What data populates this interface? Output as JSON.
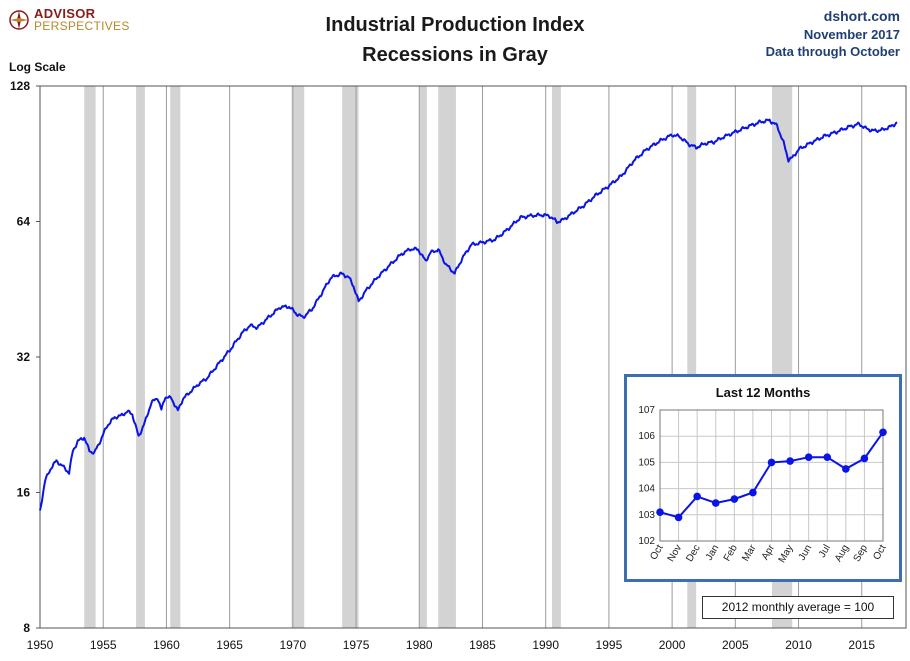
{
  "header": {
    "logo_line1": "ADVISOR",
    "logo_line2": "PERSPECTIVES",
    "title_line1": "Industrial Production Index",
    "title_line2": "Recessions in Gray",
    "source": "dshort.com",
    "date": "November 2017",
    "data_through": "Data through October",
    "y_axis_label": "Log Scale"
  },
  "colors": {
    "line": "#0a14e6",
    "recession": "#d3d3d3",
    "inset_border": "#3d6fb0",
    "title_text": "#1f3f73"
  },
  "chart_data": [
    {
      "type": "line",
      "title": "Industrial Production Index",
      "subtitle": "Recessions in Gray",
      "ylabel": "Log Scale",
      "y_scale": "log2",
      "yticks": [
        8,
        16,
        32,
        64,
        128
      ],
      "ylim": [
        8,
        128
      ],
      "xlim": [
        1950,
        2018.5
      ],
      "xticks": [
        1950,
        1955,
        1960,
        1965,
        1970,
        1975,
        1980,
        1985,
        1990,
        1995,
        2000,
        2005,
        2010,
        2015
      ],
      "grid": "vertical",
      "recessions": [
        [
          1953.5,
          1954.4
        ],
        [
          1957.6,
          1958.3
        ],
        [
          1960.3,
          1961.1
        ],
        [
          1969.9,
          1970.9
        ],
        [
          1973.9,
          1975.2
        ],
        [
          1980.0,
          1980.6
        ],
        [
          1981.5,
          1982.9
        ],
        [
          1990.5,
          1991.2
        ],
        [
          2001.2,
          2001.9
        ],
        [
          2007.9,
          2009.5
        ]
      ],
      "series": [
        {
          "x": [
            1950.0,
            1950.4,
            1950.9,
            1951.3,
            1951.8,
            1952.3,
            1952.6,
            1953.0,
            1953.5,
            1953.9,
            1954.3,
            1954.8,
            1955.3,
            1955.9,
            1956.4,
            1956.9,
            1957.3,
            1957.8,
            1958.3,
            1958.8,
            1959.3,
            1959.6,
            1959.9,
            1960.4,
            1960.9,
            1961.3,
            1961.9,
            1962.5,
            1963.2,
            1964.0,
            1965.0,
            1966.0,
            1966.6,
            1967.2,
            1968.0,
            1969.0,
            1969.7,
            1970.3,
            1970.8,
            1971.5,
            1972.3,
            1973.0,
            1973.8,
            1974.4,
            1974.8,
            1975.2,
            1975.8,
            1976.6,
            1977.6,
            1978.6,
            1979.3,
            1979.9,
            1980.5,
            1980.9,
            1981.5,
            1982.1,
            1982.8,
            1983.4,
            1984.1,
            1985.0,
            1986.0,
            1987.0,
            1988.0,
            1989.0,
            1989.9,
            1990.4,
            1990.9,
            1991.4,
            1992.2,
            1993.0,
            1994.0,
            1995.0,
            1996.0,
            1997.0,
            1998.0,
            1999.0,
            2000.0,
            2000.6,
            2001.3,
            2001.9,
            2002.6,
            2003.3,
            2004.0,
            2005.0,
            2006.0,
            2007.0,
            2007.7,
            2008.3,
            2008.8,
            2009.2,
            2009.5,
            2010.0,
            2011.0,
            2012.0,
            2013.0,
            2014.0,
            2014.8,
            2015.3,
            2015.9,
            2016.6,
            2017.3,
            2017.8
          ],
          "y": [
            14.5,
            17.0,
            18.2,
            18.8,
            18.3,
            17.7,
            19.8,
            20.8,
            21.2,
            19.8,
            19.6,
            20.9,
            22.5,
            23.5,
            23.7,
            24.2,
            23.9,
            21.3,
            22.9,
            25.3,
            26.0,
            24.4,
            26.1,
            25.9,
            24.3,
            25.8,
            26.8,
            27.8,
            28.7,
            30.6,
            33.1,
            36.2,
            37.6,
            37.2,
            39.0,
            41.3,
            41.4,
            39.9,
            39.2,
            40.8,
            44.4,
            48.0,
            49.0,
            48.2,
            46.0,
            42.5,
            45.0,
            47.8,
            51.0,
            54.2,
            55.6,
            55.5,
            52.3,
            54.6,
            55.4,
            51.4,
            49.1,
            53.0,
            56.8,
            57.5,
            58.4,
            61.5,
            65.3,
            66.0,
            66.2,
            65.6,
            63.8,
            64.6,
            67.0,
            69.4,
            73.3,
            76.8,
            80.9,
            87.5,
            92.6,
            96.5,
            99.7,
            98.8,
            95.1,
            93.4,
            95.4,
            96.1,
            98.4,
            101.2,
            104.0,
            106.5,
            107.4,
            104.5,
            96.0,
            87.8,
            88.6,
            92.5,
            95.8,
            98.9,
            101.2,
            103.9,
            105.4,
            103.1,
            101.8,
            102.2,
            104.0,
            106.2
          ]
        }
      ]
    },
    {
      "type": "line",
      "title": "Last 12 Months",
      "ylim": [
        102,
        107
      ],
      "yticks": [
        102,
        103,
        104,
        105,
        106,
        107
      ],
      "categories": [
        "Oct",
        "Nov",
        "Dec",
        "Jan",
        "Feb",
        "Mar",
        "Apr",
        "May",
        "Jun",
        "Jul",
        "Aug",
        "Sep",
        "Oct"
      ],
      "values": [
        103.1,
        102.9,
        103.7,
        103.45,
        103.6,
        103.85,
        105.0,
        105.05,
        105.2,
        105.2,
        104.75,
        105.15,
        106.15
      ],
      "grid": "on"
    }
  ],
  "footer_note": "2012 monthly average = 100"
}
